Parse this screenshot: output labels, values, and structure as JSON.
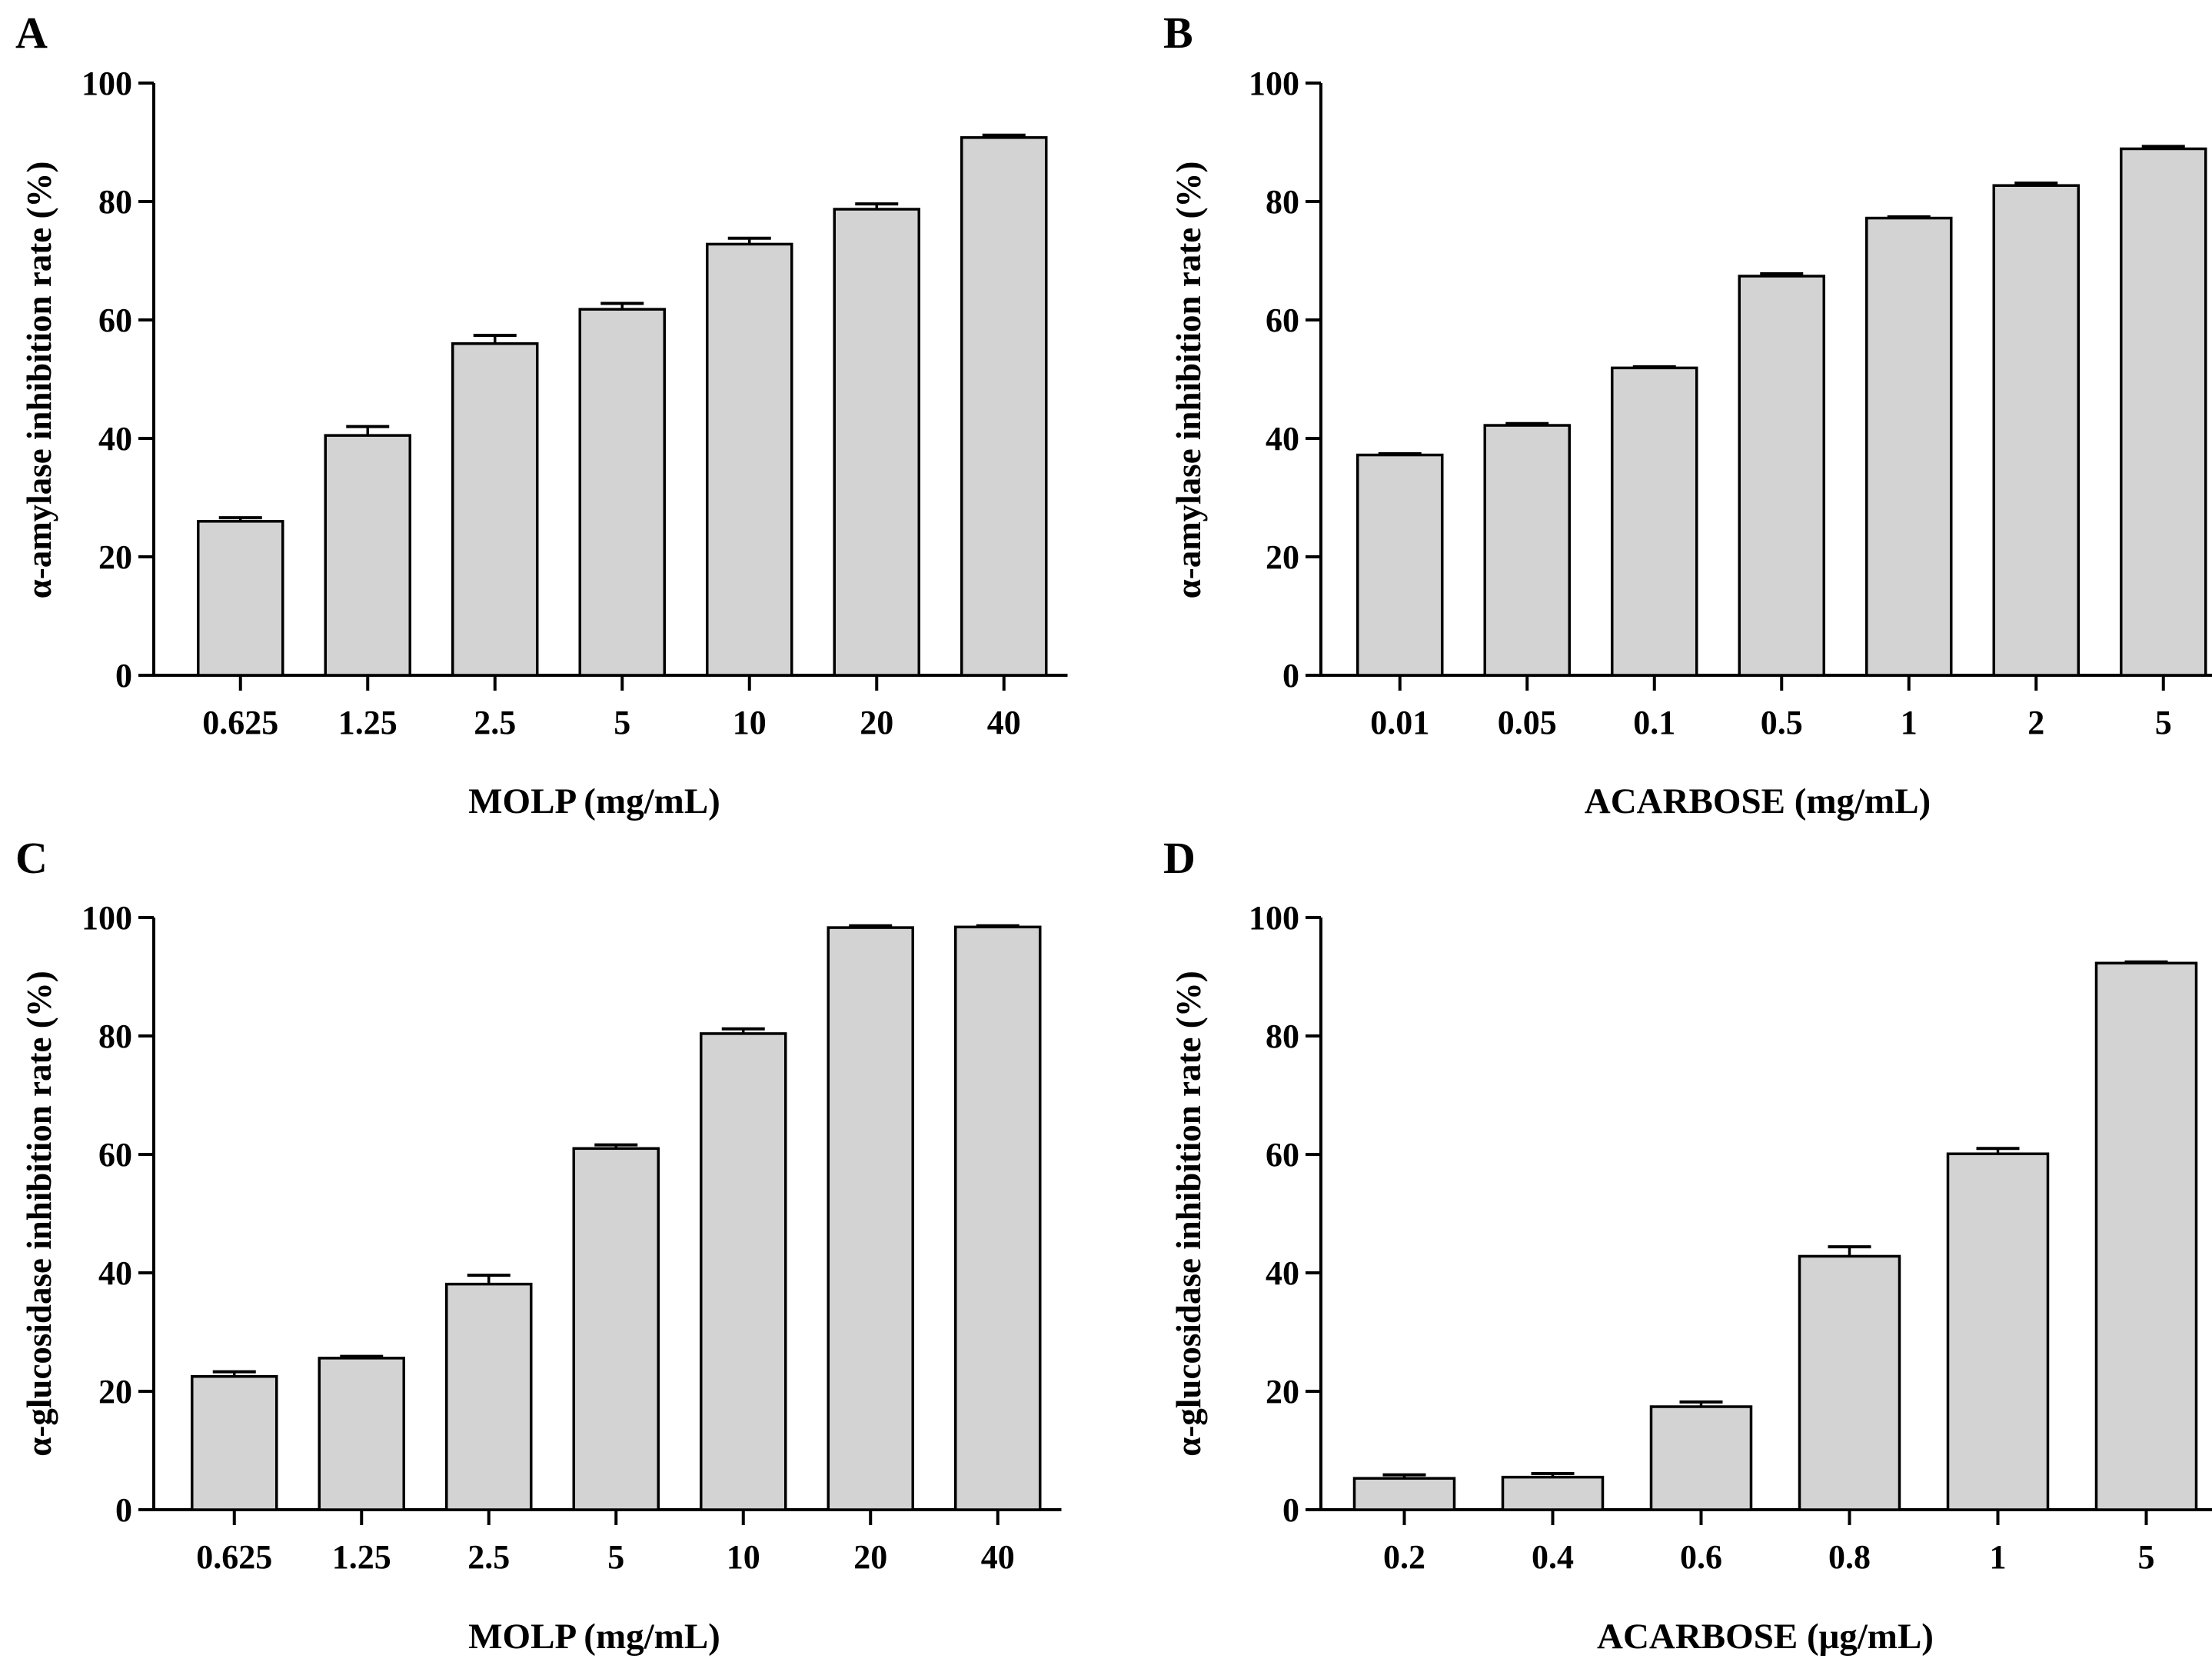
{
  "figure": {
    "panel_count": 4
  },
  "chart_data": [
    {
      "panel": "A",
      "type": "bar",
      "categories": [
        "0.625",
        "1.25",
        "2.5",
        "5",
        "10",
        "20",
        "40"
      ],
      "values": [
        26,
        40.5,
        56,
        61.8,
        72.8,
        78.7,
        90.8
      ],
      "errors": [
        0.6,
        1.5,
        1.4,
        1.0,
        1.0,
        0.9,
        0.4
      ],
      "xlabel": "MOLP  (mg/mL)",
      "ylabel": "α-amylase inhibition rate (%)",
      "ylim": [
        0,
        100
      ],
      "yticks": [
        "0",
        "20",
        "40",
        "60",
        "80",
        "100"
      ],
      "bar_color": "#d3d3d3"
    },
    {
      "panel": "B",
      "type": "bar",
      "categories": [
        "0.01",
        "0.05",
        "0.1",
        "0.5",
        "1",
        "2",
        "5"
      ],
      "values": [
        37.2,
        42.2,
        51.9,
        67.4,
        77.2,
        82.7,
        88.9
      ],
      "errors": [
        0.2,
        0.3,
        0.2,
        0.4,
        0.2,
        0.4,
        0.4
      ],
      "xlabel": "ACARBOSE (mg/mL)",
      "ylabel": "α-amylase inhibition rate (%)",
      "ylim": [
        0,
        100
      ],
      "yticks": [
        "0",
        "20",
        "40",
        "60",
        "80",
        "100"
      ],
      "bar_color": "#d3d3d3"
    },
    {
      "panel": "C",
      "type": "bar",
      "categories": [
        "0.625",
        "1.25",
        "2.5",
        "5",
        "10",
        "20",
        "40"
      ],
      "values": [
        22.5,
        25.6,
        38.1,
        61,
        80.4,
        98.3,
        98.4
      ],
      "errors": [
        0.8,
        0.3,
        1.5,
        0.6,
        0.8,
        0.3,
        0.2
      ],
      "xlabel": "MOLP (mg/mL)",
      "ylabel": "α-glucosidase inhibition rate (%)",
      "ylim": [
        0,
        100
      ],
      "yticks": [
        "0",
        "20",
        "40",
        "60",
        "80",
        "100"
      ],
      "bar_color": "#d3d3d3"
    },
    {
      "panel": "D",
      "type": "bar",
      "categories": [
        "0.2",
        "0.4",
        "0.6",
        "0.8",
        "1",
        "5"
      ],
      "values": [
        5.3,
        5.5,
        17.4,
        42.8,
        60.1,
        92.3
      ],
      "errors": [
        0.6,
        0.6,
        0.8,
        1.6,
        0.9,
        0.2
      ],
      "xlabel": "ACARBOSE (μg/mL)",
      "ylabel": "α-glucosidase inhibition rate (%)",
      "ylim": [
        0,
        100
      ],
      "yticks": [
        "0",
        "20",
        "40",
        "60",
        "80",
        "100"
      ],
      "bar_color": "#d3d3d3"
    }
  ]
}
